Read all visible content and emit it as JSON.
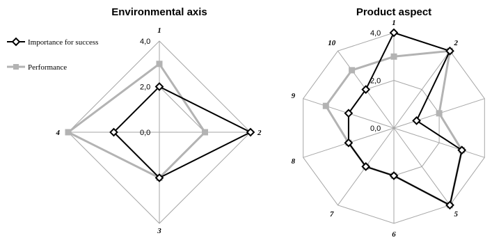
{
  "chart_data": [
    {
      "type": "radar",
      "title": "Environmental axis",
      "categories": [
        "1",
        "2",
        "3",
        "4"
      ],
      "rmax": 4.0,
      "grid_step": 2.0,
      "tick_labels": [
        "0,0",
        "2,0",
        "4,0"
      ],
      "legend": "left",
      "series": [
        {
          "name": "Importance for success",
          "values": [
            2.0,
            4.0,
            2.0,
            2.0
          ],
          "color": "#000000",
          "marker": "diamond"
        },
        {
          "name": "Performance",
          "values": [
            3.0,
            2.0,
            2.0,
            4.0
          ],
          "color": "#b3b3b3",
          "marker": "square"
        }
      ]
    },
    {
      "type": "radar",
      "title": "Product aspect",
      "categories": [
        "1",
        "2",
        "3",
        "4",
        "5",
        "6",
        "7",
        "8",
        "9",
        "10"
      ],
      "rmax": 4.0,
      "grid_step": 2.0,
      "tick_labels": [
        "0,0",
        "2,0",
        "4,0"
      ],
      "series": [
        {
          "name": "Importance for success",
          "values": [
            4.0,
            4.0,
            1.0,
            3.0,
            4.0,
            2.0,
            2.0,
            2.0,
            2.0,
            2.0
          ],
          "color": "#000000",
          "marker": "diamond"
        },
        {
          "name": "Performance",
          "values": [
            3.0,
            4.0,
            2.0,
            3.0,
            4.0,
            2.0,
            2.0,
            2.0,
            3.0,
            3.0
          ],
          "color": "#b3b3b3",
          "marker": "square"
        }
      ]
    }
  ]
}
